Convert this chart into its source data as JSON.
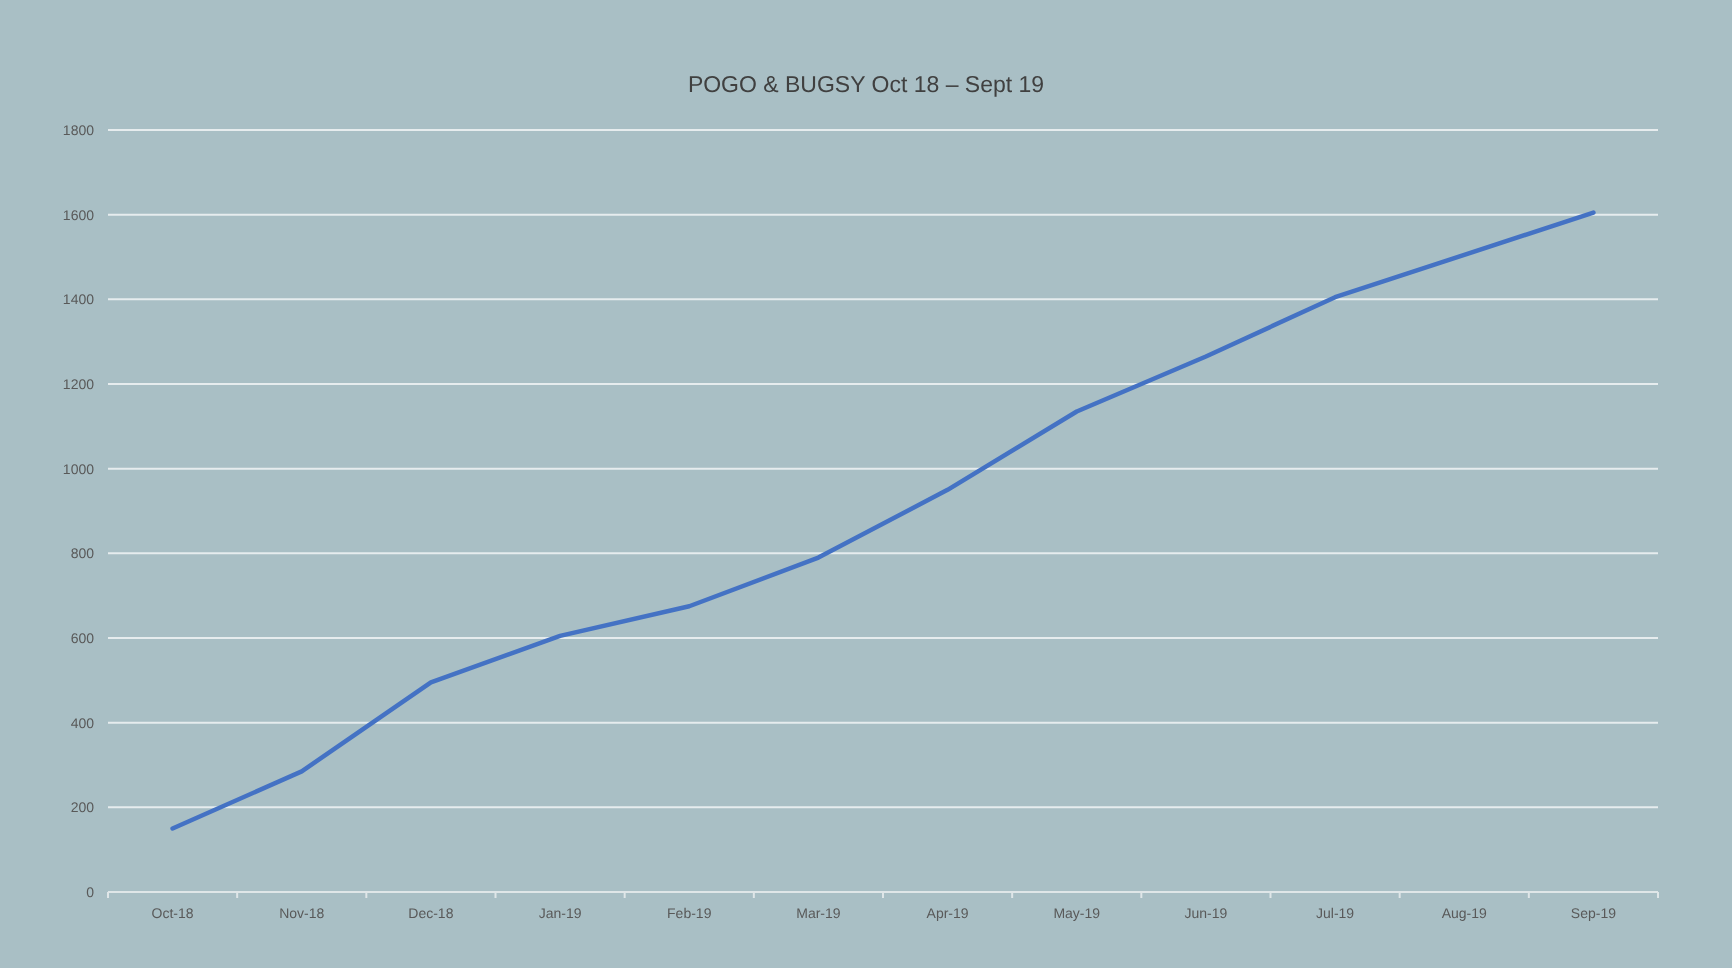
{
  "chart_data": {
    "type": "line",
    "title": "POGO & BUGSY Oct 18 – Sept 19",
    "categories": [
      "Oct-18",
      "Nov-18",
      "Dec-18",
      "Jan-19",
      "Feb-19",
      "Mar-19",
      "Apr-19",
      "May-19",
      "Jun-19",
      "Jul-19",
      "Aug-19",
      "Sep-19"
    ],
    "values": [
      150,
      285,
      495,
      605,
      675,
      790,
      950,
      1135,
      1265,
      1405,
      1505,
      1605
    ],
    "color": "#4472c4",
    "ylim": [
      0,
      1800
    ],
    "yticks": [
      0,
      200,
      400,
      600,
      800,
      1000,
      1200,
      1400,
      1600,
      1800
    ],
    "grid": "y"
  }
}
